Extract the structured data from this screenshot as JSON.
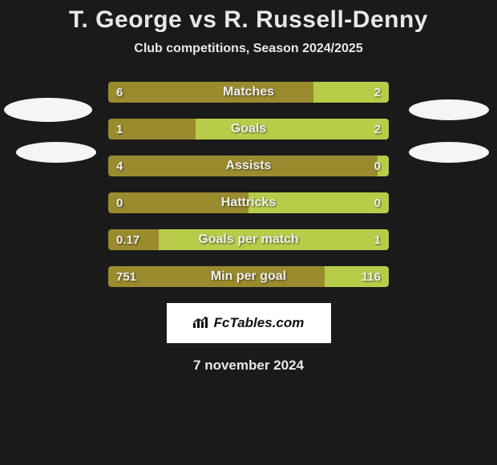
{
  "title": "T. George vs R. Russell-Denny",
  "subtitle": "Club competitions, Season 2024/2025",
  "colors": {
    "left_bar": "#9a8c2e",
    "right_bar": "#b8cc4a",
    "background": "#1a1a1a",
    "text": "#e8e8e8",
    "ellipse": "#f5f5f5"
  },
  "rows": [
    {
      "label": "Matches",
      "left_val": "6",
      "right_val": "2",
      "left_pct": 73,
      "right_pct": 27
    },
    {
      "label": "Goals",
      "left_val": "1",
      "right_val": "2",
      "left_pct": 31,
      "right_pct": 69
    },
    {
      "label": "Assists",
      "left_val": "4",
      "right_val": "0",
      "left_pct": 96,
      "right_pct": 4
    },
    {
      "label": "Hattricks",
      "left_val": "0",
      "right_val": "0",
      "left_pct": 50,
      "right_pct": 50
    },
    {
      "label": "Goals per match",
      "left_val": "0.17",
      "right_val": "1",
      "left_pct": 18,
      "right_pct": 82
    },
    {
      "label": "Min per goal",
      "left_val": "751",
      "right_val": "116",
      "left_pct": 77,
      "right_pct": 23
    }
  ],
  "badge": {
    "text": "FcTables.com",
    "icon": "chart-icon"
  },
  "date": "7 november 2024"
}
